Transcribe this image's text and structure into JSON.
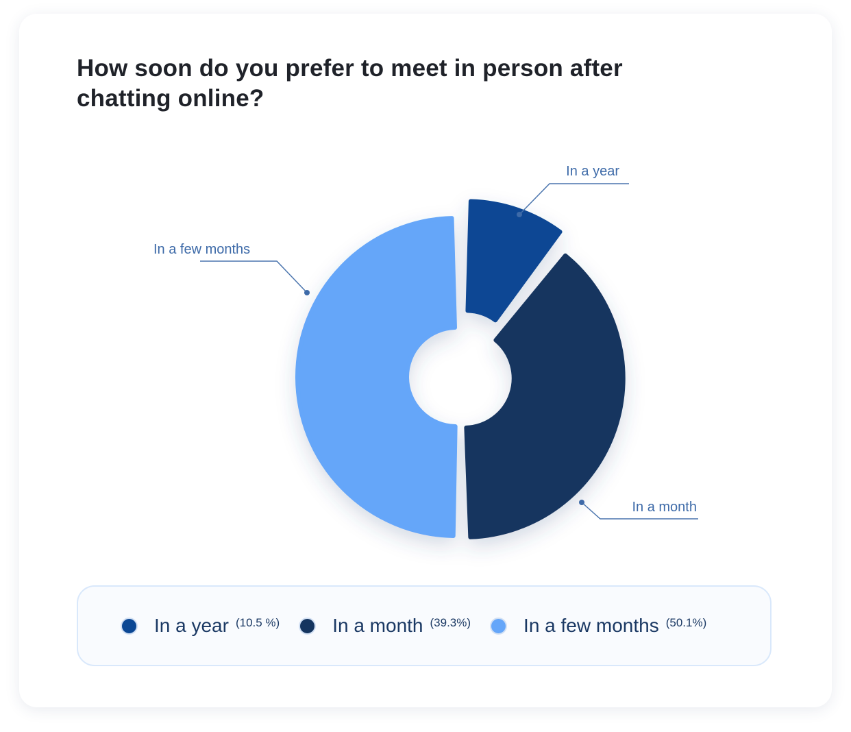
{
  "chart_data": {
    "type": "pie",
    "style": "donut",
    "title": "How soon do you prefer to meet in person after chatting online?",
    "slices": [
      {
        "label": "In a year",
        "percent_label": "(10.5 %)",
        "value": 10.5,
        "color": "#0b4794"
      },
      {
        "label": "In a month",
        "percent_label": "(39.3%)",
        "value": 39.3,
        "color": "#15355f"
      },
      {
        "label": "In a few months",
        "percent_label": "(50.1%)",
        "value": 50.1,
        "color": "#65a6f9"
      }
    ],
    "legend_placement": "bottom"
  },
  "colors": {
    "title": "#1f2229",
    "label": "#3d6aa8",
    "legend_text": "#1a3863",
    "legend_border": "#d9e8fb"
  }
}
